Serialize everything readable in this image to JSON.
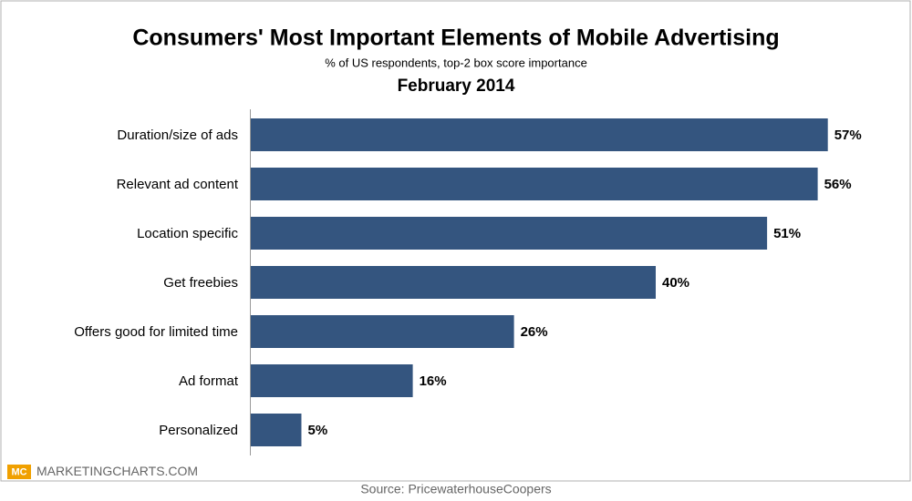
{
  "chart_data": {
    "type": "bar",
    "orientation": "horizontal",
    "title": "Consumers' Most Important Elements of Mobile Advertising",
    "subtitle": "% of US respondents, top-2 box score importance",
    "date": "February 2014",
    "categories": [
      "Duration/size of ads",
      "Relevant ad content",
      "Location specific",
      "Get freebies",
      "Offers good for limited time",
      "Ad format",
      "Personalized"
    ],
    "values": [
      57,
      56,
      51,
      40,
      26,
      16,
      5
    ],
    "value_labels": [
      "57%",
      "56%",
      "51%",
      "40%",
      "26%",
      "16%",
      "5%"
    ],
    "color": "#34557f",
    "logo": "MC",
    "branding": "MARKETINGCHARTS.COM",
    "source": "Source: PricewaterhouseCoopers"
  }
}
